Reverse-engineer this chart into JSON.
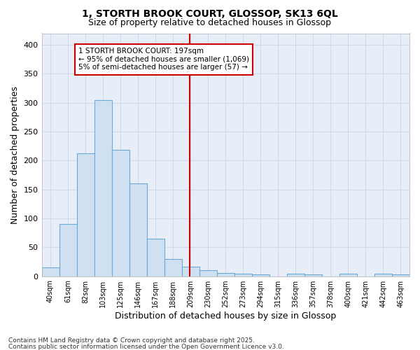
{
  "title1": "1, STORTH BROOK COURT, GLOSSOP, SK13 6QL",
  "title2": "Size of property relative to detached houses in Glossop",
  "xlabel": "Distribution of detached houses by size in Glossop",
  "ylabel": "Number of detached properties",
  "categories": [
    "40sqm",
    "61sqm",
    "82sqm",
    "103sqm",
    "125sqm",
    "146sqm",
    "167sqm",
    "188sqm",
    "209sqm",
    "230sqm",
    "252sqm",
    "273sqm",
    "294sqm",
    "315sqm",
    "336sqm",
    "357sqm",
    "378sqm",
    "400sqm",
    "421sqm",
    "442sqm",
    "463sqm"
  ],
  "values": [
    15,
    90,
    212,
    305,
    218,
    160,
    65,
    30,
    17,
    10,
    6,
    4,
    3,
    0,
    4,
    3,
    0,
    4,
    0,
    4,
    3
  ],
  "bar_color": "#cfe0f0",
  "bar_edge_color": "#6aaad4",
  "vline_color": "#cc0000",
  "annotation_text": "1 STORTH BROOK COURT: 197sqm\n← 95% of detached houses are smaller (1,069)\n5% of semi-detached houses are larger (57) →",
  "annotation_box_color": "#cc0000",
  "ylim": [
    0,
    420
  ],
  "yticks": [
    0,
    50,
    100,
    150,
    200,
    250,
    300,
    350,
    400
  ],
  "grid_color": "#d0dae8",
  "bg_color": "#e8eef8",
  "fig_color": "#ffffff",
  "footer1": "Contains HM Land Registry data © Crown copyright and database right 2025.",
  "footer2": "Contains public sector information licensed under the Open Government Licence v3.0."
}
